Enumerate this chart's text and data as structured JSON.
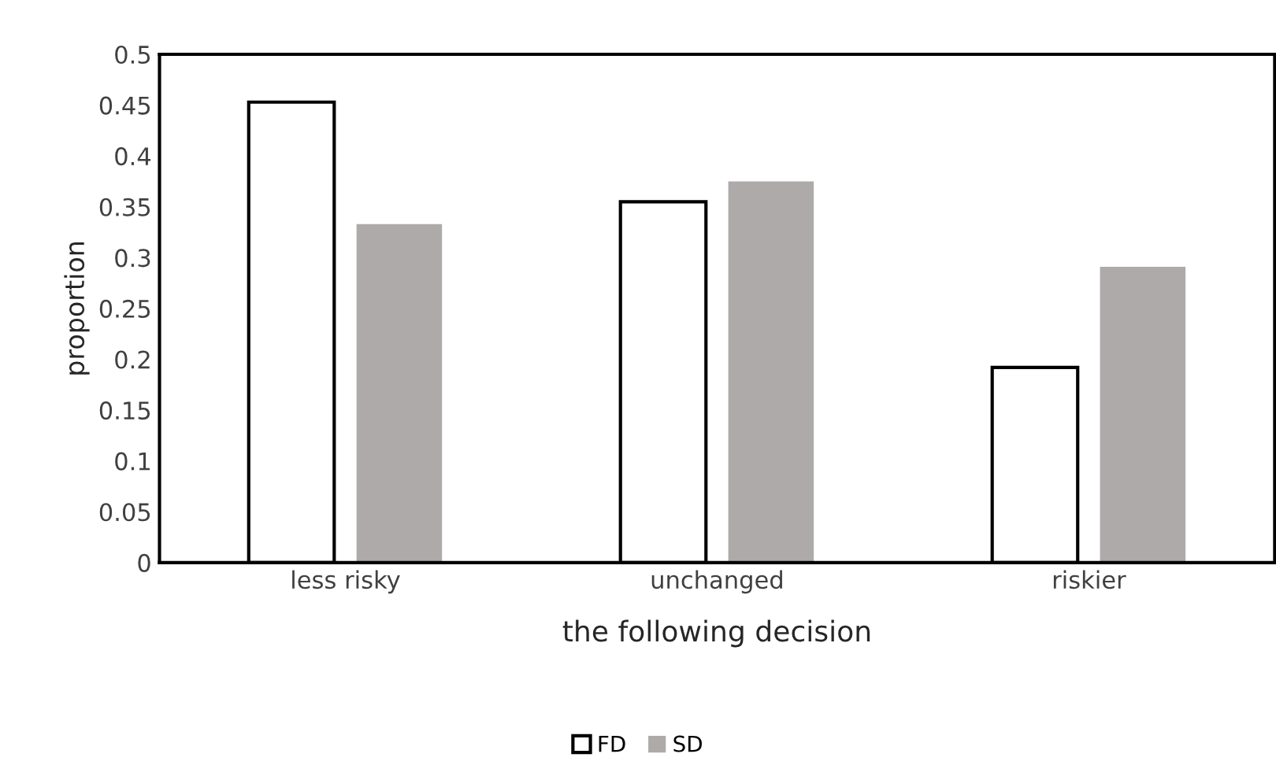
{
  "chart_data": {
    "type": "bar",
    "xlabel": "the following decision",
    "ylabel": "proportion",
    "categories": [
      "less risky",
      "unchanged",
      "riskier"
    ],
    "series": [
      {
        "name": "FD",
        "color": "#ffffff",
        "values": [
          0.453,
          0.355,
          0.192
        ]
      },
      {
        "name": "SD",
        "color": "#aeaaaa",
        "values": [
          0.333,
          0.375,
          0.291
        ]
      }
    ],
    "ylim": [
      0,
      0.5
    ],
    "yticks": [
      0,
      0.05,
      0.1,
      0.15,
      0.2,
      0.25,
      0.3,
      0.35,
      0.4,
      0.45,
      0.5
    ],
    "grid": false,
    "legend": "bottom"
  }
}
